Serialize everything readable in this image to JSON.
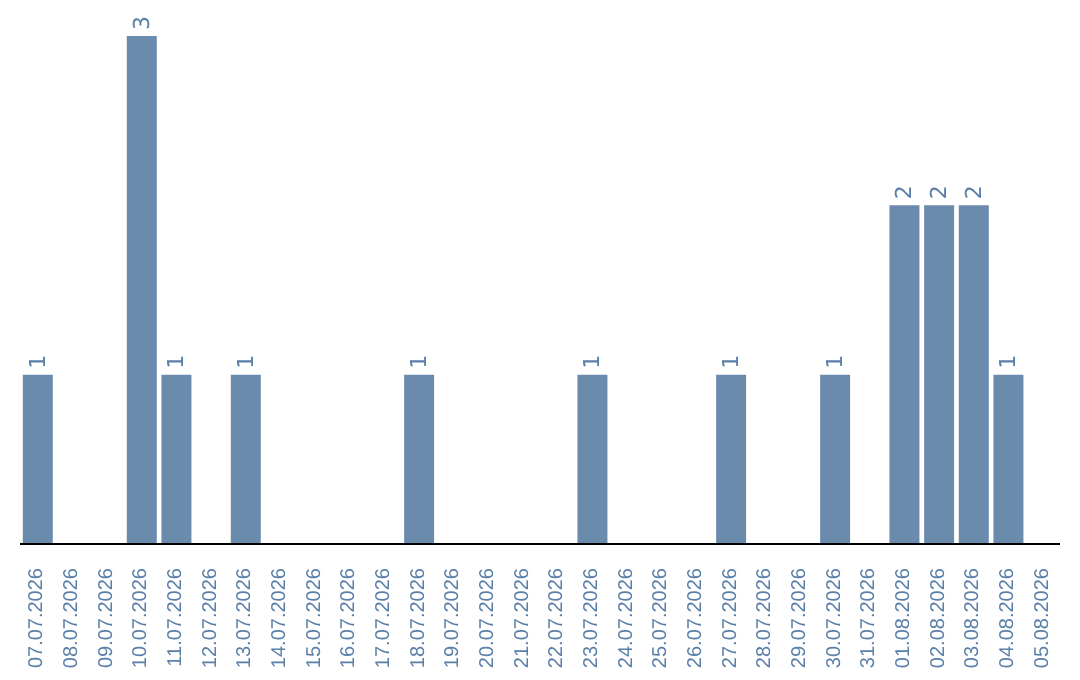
{
  "chart_data": {
    "type": "bar",
    "categories": [
      "07.07.2026",
      "08.07.2026",
      "09.07.2026",
      "10.07.2026",
      "11.07.2026",
      "12.07.2026",
      "13.07.2026",
      "14.07.2026",
      "15.07.2026",
      "16.07.2026",
      "17.07.2026",
      "18.07.2026",
      "19.07.2026",
      "20.07.2026",
      "21.07.2026",
      "22.07.2026",
      "23.07.2026",
      "24.07.2026",
      "25.07.2026",
      "26.07.2026",
      "27.07.2026",
      "28.07.2026",
      "29.07.2026",
      "30.07.2026",
      "31.07.2026",
      "01.08.2026",
      "02.08.2026",
      "03.08.2026",
      "04.08.2026",
      "05.08.2026"
    ],
    "values": [
      1,
      0,
      0,
      3,
      1,
      0,
      1,
      0,
      0,
      0,
      0,
      1,
      0,
      0,
      0,
      0,
      1,
      0,
      0,
      0,
      1,
      0,
      0,
      1,
      0,
      2,
      2,
      2,
      1,
      0
    ],
    "value_labels": [
      "1",
      null,
      null,
      "3",
      "1",
      null,
      "1",
      null,
      null,
      null,
      null,
      "1",
      null,
      null,
      null,
      null,
      "1",
      null,
      null,
      null,
      "1",
      null,
      null,
      "1",
      null,
      "2",
      "2",
      "2",
      "1",
      null
    ],
    "color": "#6a8bab",
    "grid": false,
    "legend": false,
    "tick_labels": "x"
  }
}
